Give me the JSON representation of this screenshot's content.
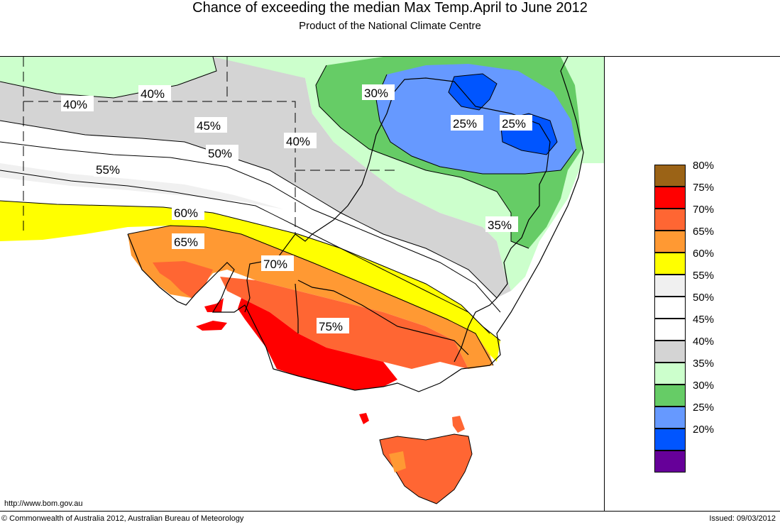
{
  "header": {
    "title": "Chance of exceeding the median Max Temp.April to June 2012",
    "subtitle": "Product of the National Climate Centre"
  },
  "map": {
    "contour_labels": [
      "40%",
      "40%",
      "45%",
      "40%",
      "50%",
      "55%",
      "30%",
      "25%",
      "25%",
      "60%",
      "65%",
      "35%",
      "70%",
      "75%"
    ]
  },
  "legend": {
    "items": [
      {
        "label": "80%",
        "color": "#9b6316"
      },
      {
        "label": "75%",
        "color": "#ff0000"
      },
      {
        "label": "70%",
        "color": "#ff6633"
      },
      {
        "label": "65%",
        "color": "#ff9933"
      },
      {
        "label": "60%",
        "color": "#ffff00"
      },
      {
        "label": "55%",
        "color": "#f0f0f0"
      },
      {
        "label": "50%",
        "color": "#ffffff"
      },
      {
        "label": "45%",
        "color": "#ffffff"
      },
      {
        "label": "40%",
        "color": "#d4d4d4"
      },
      {
        "label": "35%",
        "color": "#ccffcc"
      },
      {
        "label": "30%",
        "color": "#66cc66"
      },
      {
        "label": "25%",
        "color": "#6699ff"
      },
      {
        "label": "20%",
        "color": "#0055ff"
      },
      {
        "label": "",
        "color": "#660099"
      }
    ]
  },
  "footer": {
    "url": "http://www.bom.gov.au",
    "copyright": "© Commonwealth of Australia 2012, Australian Bureau of Meteorology",
    "issued": "Issued: 09/03/2012"
  }
}
